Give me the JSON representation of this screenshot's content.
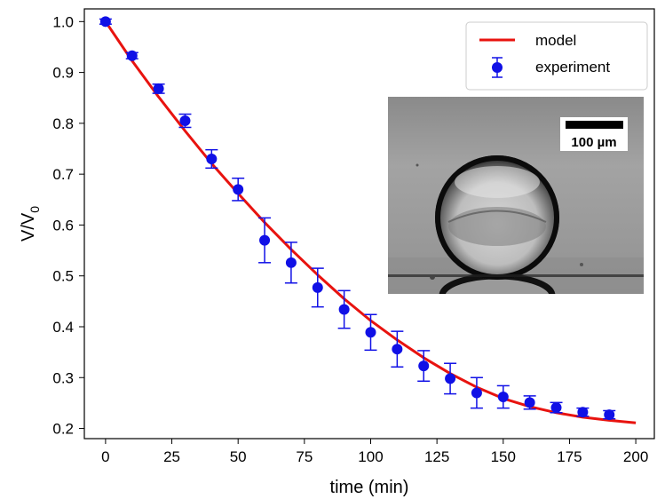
{
  "chart_data": {
    "type": "scatter",
    "xlabel": "time (min)",
    "ylabel_main": "V/V",
    "ylabel_sub": "0",
    "xlim": [
      -8,
      207
    ],
    "ylim": [
      0.18,
      1.025
    ],
    "xticks": [
      0,
      25,
      50,
      75,
      100,
      125,
      150,
      175,
      200
    ],
    "yticks": [
      0.2,
      0.3,
      0.4,
      0.5,
      0.6,
      0.7,
      0.8,
      0.9,
      1.0
    ],
    "grid": false,
    "legend_position": "top-right",
    "series": [
      {
        "name": "model",
        "kind": "line",
        "color": "#e8130f",
        "x": [
          0,
          10,
          20,
          30,
          40,
          50,
          60,
          70,
          80,
          90,
          100,
          110,
          120,
          130,
          140,
          150,
          160,
          170,
          180,
          190,
          200
        ],
        "y": [
          1.0,
          0.923,
          0.852,
          0.785,
          0.721,
          0.662,
          0.605,
          0.552,
          0.502,
          0.455,
          0.412,
          0.374,
          0.339,
          0.308,
          0.281,
          0.259,
          0.243,
          0.231,
          0.222,
          0.216,
          0.211
        ]
      },
      {
        "name": "experiment",
        "kind": "scatter_errorbar",
        "color": "#1010e6",
        "x": [
          0,
          10,
          20,
          30,
          40,
          50,
          60,
          70,
          80,
          90,
          100,
          110,
          120,
          130,
          140,
          150,
          160,
          170,
          180,
          190
        ],
        "y": [
          1.0,
          0.933,
          0.868,
          0.805,
          0.73,
          0.67,
          0.57,
          0.526,
          0.477,
          0.434,
          0.389,
          0.356,
          0.323,
          0.298,
          0.27,
          0.262,
          0.251,
          0.241,
          0.232,
          0.227
        ],
        "err": [
          0.005,
          0.006,
          0.009,
          0.013,
          0.018,
          0.022,
          0.044,
          0.04,
          0.038,
          0.037,
          0.035,
          0.035,
          0.03,
          0.03,
          0.03,
          0.022,
          0.013,
          0.01,
          0.008,
          0.008
        ]
      }
    ],
    "inset": {
      "scale_bar_label": "100 µm"
    }
  }
}
